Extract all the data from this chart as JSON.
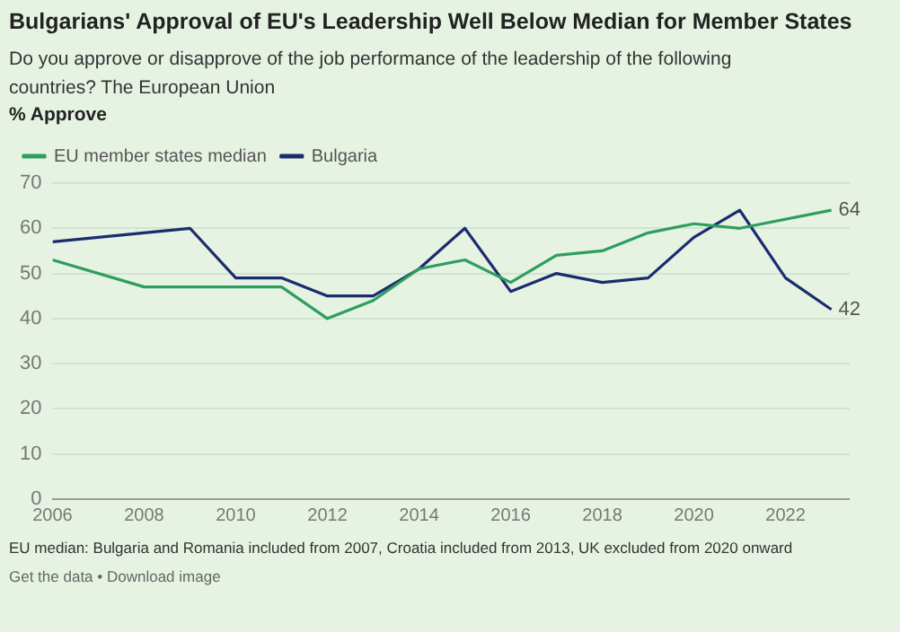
{
  "chart_data": {
    "type": "line",
    "title": "Bulgarians' Approval of EU's Leadership Well Below Median for Member States",
    "subtitle": "Do you approve or disapprove of the job performance of the leadership of the following countries? The European Union",
    "ylabel": "% Approve",
    "series": [
      {
        "name": "EU member states median",
        "color": "#2e9e5e",
        "x": [
          2006,
          2008,
          2011,
          2012,
          2013,
          2014,
          2015,
          2016,
          2017,
          2018,
          2019,
          2020,
          2021,
          2023
        ],
        "values": [
          53,
          47,
          47,
          40,
          44,
          51,
          53,
          48,
          54,
          55,
          59,
          61,
          60,
          64
        ],
        "value_labels": [
          null,
          null,
          null,
          null,
          null,
          null,
          null,
          null,
          null,
          null,
          null,
          null,
          null,
          "64"
        ]
      },
      {
        "name": "Bulgaria",
        "color": "#1b2c6e",
        "x": [
          2006,
          2009,
          2010,
          2011,
          2012,
          2013,
          2014,
          2015,
          2016,
          2017,
          2018,
          2019,
          2020,
          2021,
          2022,
          2023
        ],
        "values": [
          57,
          60,
          49,
          49,
          45,
          45,
          51,
          60,
          46,
          50,
          48,
          49,
          58,
          64,
          49,
          42
        ],
        "value_labels": [
          null,
          null,
          null,
          null,
          null,
          null,
          null,
          null,
          null,
          null,
          null,
          null,
          null,
          null,
          null,
          "42"
        ]
      }
    ],
    "xlim": [
      2006,
      2023.4
    ],
    "xticks": [
      2006,
      2008,
      2010,
      2012,
      2014,
      2016,
      2018,
      2020,
      2022
    ],
    "ylim": [
      0,
      70
    ],
    "yticks": [
      0,
      10,
      20,
      30,
      40,
      50,
      60,
      70
    ],
    "grid": "y",
    "legend": "top left",
    "marker": "none",
    "line_style": "solid",
    "annotations": [
      "EU median: Bulgaria and Romania included from 2007, Croatia included from 2013, UK excluded from 2020 onward",
      "Get the data • Download image"
    ]
  }
}
